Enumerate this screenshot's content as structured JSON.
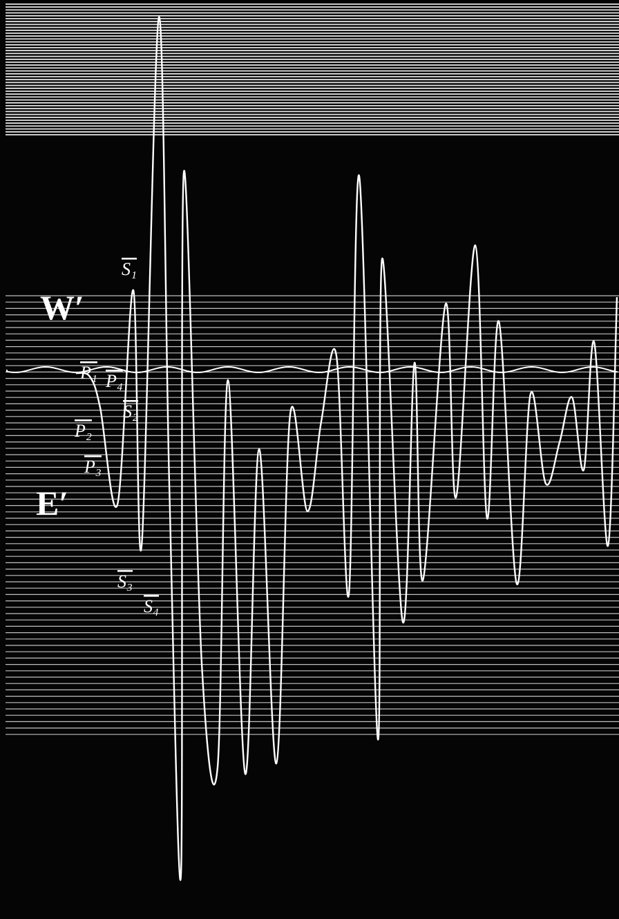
{
  "labels": {
    "west": "W′",
    "east": "E′",
    "phases": [
      "P₁",
      "P₂",
      "P₃",
      "P₄",
      "S₁",
      "S₂",
      "S₃",
      "S₄"
    ]
  }
}
